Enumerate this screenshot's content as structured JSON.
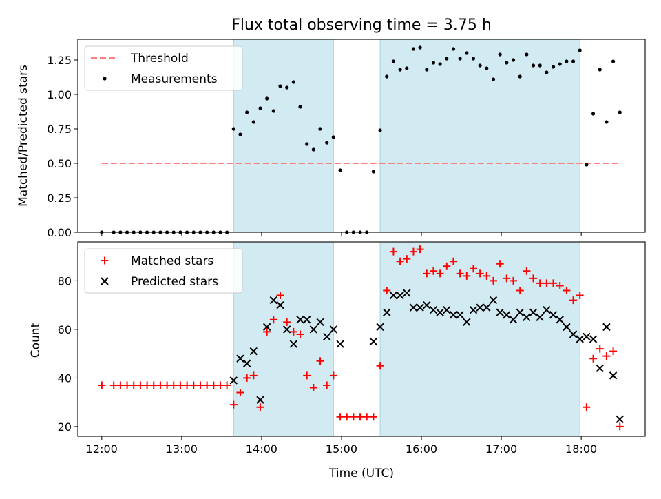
{
  "chart_data": [
    {
      "type": "scatter",
      "title": "Flux total observing time = 3.75 h",
      "xlabel": "",
      "ylabel": "Matched/Predicted stars",
      "ylim": [
        0.0,
        1.4
      ],
      "xlim": [
        "11:42",
        "18:48"
      ],
      "yticks": [
        "0.00",
        "0.25",
        "0.50",
        "0.75",
        "1.00",
        "1.25"
      ],
      "grid": false,
      "legend_position": "upper-left",
      "shaded_intervals": [
        [
          "13:39",
          "14:54"
        ],
        [
          "15:29",
          "17:59"
        ]
      ],
      "shade_color": "#add8e6",
      "threshold": {
        "name": "Threshold",
        "value": 0.5,
        "x_range": [
          "12:00",
          "18:30"
        ],
        "color": "#ff7f7f",
        "style": "dashed"
      },
      "series": [
        {
          "name": "Measurements",
          "color": "#000000",
          "marker": "dot",
          "points": [
            [
              "12:00",
              0.0
            ],
            [
              "12:09",
              0.0
            ],
            [
              "12:14",
              0.0
            ],
            [
              "12:19",
              0.0
            ],
            [
              "12:24",
              0.0
            ],
            [
              "12:29",
              0.0
            ],
            [
              "12:34",
              0.0
            ],
            [
              "12:39",
              0.0
            ],
            [
              "12:44",
              0.0
            ],
            [
              "12:49",
              0.0
            ],
            [
              "12:54",
              0.0
            ],
            [
              "12:59",
              0.0
            ],
            [
              "13:04",
              0.0
            ],
            [
              "13:09",
              0.0
            ],
            [
              "13:14",
              0.0
            ],
            [
              "13:19",
              0.0
            ],
            [
              "13:24",
              0.0
            ],
            [
              "13:29",
              0.0
            ],
            [
              "13:34",
              0.0
            ],
            [
              "13:39",
              0.75
            ],
            [
              "13:44",
              0.71
            ],
            [
              "13:49",
              0.87
            ],
            [
              "13:54",
              0.8
            ],
            [
              "13:59",
              0.9
            ],
            [
              "14:04",
              0.97
            ],
            [
              "14:09",
              0.88
            ],
            [
              "14:14",
              1.06
            ],
            [
              "14:19",
              1.05
            ],
            [
              "14:24",
              1.09
            ],
            [
              "14:29",
              0.91
            ],
            [
              "14:34",
              0.64
            ],
            [
              "14:39",
              0.6
            ],
            [
              "14:44",
              0.75
            ],
            [
              "14:49",
              0.65
            ],
            [
              "14:54",
              0.69
            ],
            [
              "14:59",
              0.45
            ],
            [
              "15:04",
              0.0
            ],
            [
              "15:09",
              0.0
            ],
            [
              "15:14",
              0.0
            ],
            [
              "15:19",
              0.0
            ],
            [
              "15:24",
              0.44
            ],
            [
              "15:29",
              0.74
            ],
            [
              "15:34",
              1.13
            ],
            [
              "15:39",
              1.24
            ],
            [
              "15:44",
              1.18
            ],
            [
              "15:49",
              1.19
            ],
            [
              "15:54",
              1.33
            ],
            [
              "15:59",
              1.34
            ],
            [
              "16:04",
              1.18
            ],
            [
              "16:09",
              1.23
            ],
            [
              "16:14",
              1.22
            ],
            [
              "16:19",
              1.26
            ],
            [
              "16:24",
              1.33
            ],
            [
              "16:29",
              1.26
            ],
            [
              "16:34",
              1.3
            ],
            [
              "16:39",
              1.26
            ],
            [
              "16:44",
              1.21
            ],
            [
              "16:49",
              1.19
            ],
            [
              "16:54",
              1.11
            ],
            [
              "16:59",
              1.29
            ],
            [
              "17:04",
              1.23
            ],
            [
              "17:09",
              1.25
            ],
            [
              "17:14",
              1.13
            ],
            [
              "17:19",
              1.29
            ],
            [
              "17:24",
              1.21
            ],
            [
              "17:29",
              1.21
            ],
            [
              "17:34",
              1.16
            ],
            [
              "17:39",
              1.2
            ],
            [
              "17:44",
              1.22
            ],
            [
              "17:49",
              1.24
            ],
            [
              "17:54",
              1.24
            ],
            [
              "17:59",
              1.32
            ],
            [
              "18:04",
              0.49
            ],
            [
              "18:09",
              0.86
            ],
            [
              "18:14",
              1.18
            ],
            [
              "18:19",
              0.8
            ],
            [
              "18:24",
              1.24
            ],
            [
              "18:29",
              0.87
            ]
          ]
        }
      ],
      "legend": [
        "Threshold",
        "Measurements"
      ]
    },
    {
      "type": "scatter",
      "title": "",
      "xlabel": "Time (UTC)",
      "ylabel": "Count",
      "ylim": [
        16.0,
        96.0
      ],
      "xlim": [
        "11:42",
        "18:48"
      ],
      "xticks": [
        "12:00",
        "13:00",
        "14:00",
        "15:00",
        "16:00",
        "17:00",
        "18:00"
      ],
      "yticks": [
        "20",
        "40",
        "60",
        "80"
      ],
      "grid": false,
      "legend_position": "upper-left",
      "shaded_intervals": [
        [
          "13:39",
          "14:54"
        ],
        [
          "15:29",
          "17:59"
        ]
      ],
      "shade_color": "#add8e6",
      "series": [
        {
          "name": "Matched stars",
          "color": "#ff0000",
          "marker": "plus",
          "points": [
            [
              "12:00",
              37
            ],
            [
              "12:09",
              37
            ],
            [
              "12:14",
              37
            ],
            [
              "12:19",
              37
            ],
            [
              "12:24",
              37
            ],
            [
              "12:29",
              37
            ],
            [
              "12:34",
              37
            ],
            [
              "12:39",
              37
            ],
            [
              "12:44",
              37
            ],
            [
              "12:49",
              37
            ],
            [
              "12:54",
              37
            ],
            [
              "12:59",
              37
            ],
            [
              "13:04",
              37
            ],
            [
              "13:09",
              37
            ],
            [
              "13:14",
              37
            ],
            [
              "13:19",
              37
            ],
            [
              "13:24",
              37
            ],
            [
              "13:29",
              37
            ],
            [
              "13:34",
              37
            ],
            [
              "13:39",
              29
            ],
            [
              "13:44",
              34
            ],
            [
              "13:49",
              40
            ],
            [
              "13:54",
              41
            ],
            [
              "13:59",
              28
            ],
            [
              "14:04",
              59
            ],
            [
              "14:09",
              64
            ],
            [
              "14:14",
              74
            ],
            [
              "14:19",
              63
            ],
            [
              "14:24",
              59
            ],
            [
              "14:29",
              58
            ],
            [
              "14:34",
              41
            ],
            [
              "14:39",
              36
            ],
            [
              "14:44",
              47
            ],
            [
              "14:49",
              37
            ],
            [
              "14:54",
              41
            ],
            [
              "14:59",
              24
            ],
            [
              "15:04",
              24
            ],
            [
              "15:09",
              24
            ],
            [
              "15:14",
              24
            ],
            [
              "15:19",
              24
            ],
            [
              "15:24",
              24
            ],
            [
              "15:29",
              45
            ],
            [
              "15:34",
              76
            ],
            [
              "15:39",
              92
            ],
            [
              "15:44",
              88
            ],
            [
              "15:49",
              89
            ],
            [
              "15:54",
              92
            ],
            [
              "15:59",
              93
            ],
            [
              "16:04",
              83
            ],
            [
              "16:09",
              84
            ],
            [
              "16:14",
              83
            ],
            [
              "16:19",
              86
            ],
            [
              "16:24",
              88
            ],
            [
              "16:29",
              83
            ],
            [
              "16:34",
              82
            ],
            [
              "16:39",
              85
            ],
            [
              "16:44",
              83
            ],
            [
              "16:49",
              82
            ],
            [
              "16:54",
              80
            ],
            [
              "16:59",
              87
            ],
            [
              "17:04",
              81
            ],
            [
              "17:09",
              80
            ],
            [
              "17:14",
              76
            ],
            [
              "17:19",
              84
            ],
            [
              "17:24",
              81
            ],
            [
              "17:29",
              79
            ],
            [
              "17:34",
              79
            ],
            [
              "17:39",
              79
            ],
            [
              "17:44",
              78
            ],
            [
              "17:49",
              76
            ],
            [
              "17:54",
              72
            ],
            [
              "17:59",
              74
            ],
            [
              "18:04",
              28
            ],
            [
              "18:09",
              48
            ],
            [
              "18:14",
              52
            ],
            [
              "18:19",
              49
            ],
            [
              "18:24",
              51
            ],
            [
              "18:29",
              20
            ]
          ]
        },
        {
          "name": "Predicted stars",
          "color": "#000000",
          "marker": "x",
          "points": [
            [
              "13:39",
              39
            ],
            [
              "13:44",
              48
            ],
            [
              "13:49",
              46
            ],
            [
              "13:54",
              51
            ],
            [
              "13:59",
              31
            ],
            [
              "14:04",
              61
            ],
            [
              "14:09",
              72
            ],
            [
              "14:14",
              70
            ],
            [
              "14:19",
              60
            ],
            [
              "14:24",
              54
            ],
            [
              "14:29",
              64
            ],
            [
              "14:34",
              64
            ],
            [
              "14:39",
              60
            ],
            [
              "14:44",
              63
            ],
            [
              "14:49",
              57
            ],
            [
              "14:54",
              60
            ],
            [
              "14:59",
              54
            ],
            [
              "15:24",
              55
            ],
            [
              "15:29",
              61
            ],
            [
              "15:34",
              67
            ],
            [
              "15:39",
              74
            ],
            [
              "15:44",
              74
            ],
            [
              "15:49",
              75
            ],
            [
              "15:54",
              69
            ],
            [
              "15:59",
              69
            ],
            [
              "16:04",
              70
            ],
            [
              "16:09",
              68
            ],
            [
              "16:14",
              67
            ],
            [
              "16:19",
              68
            ],
            [
              "16:24",
              66
            ],
            [
              "16:29",
              66
            ],
            [
              "16:34",
              63
            ],
            [
              "16:39",
              68
            ],
            [
              "16:44",
              69
            ],
            [
              "16:49",
              69
            ],
            [
              "16:54",
              72
            ],
            [
              "16:59",
              67
            ],
            [
              "17:04",
              66
            ],
            [
              "17:09",
              64
            ],
            [
              "17:14",
              67
            ],
            [
              "17:19",
              65
            ],
            [
              "17:24",
              67
            ],
            [
              "17:29",
              65
            ],
            [
              "17:34",
              68
            ],
            [
              "17:39",
              66
            ],
            [
              "17:44",
              64
            ],
            [
              "17:49",
              61
            ],
            [
              "17:54",
              58
            ],
            [
              "17:59",
              56
            ],
            [
              "18:04",
              57
            ],
            [
              "18:09",
              56
            ],
            [
              "18:14",
              44
            ],
            [
              "18:19",
              61
            ],
            [
              "18:24",
              41
            ],
            [
              "18:29",
              23
            ]
          ]
        }
      ],
      "legend": [
        "Matched stars",
        "Predicted stars"
      ]
    }
  ]
}
